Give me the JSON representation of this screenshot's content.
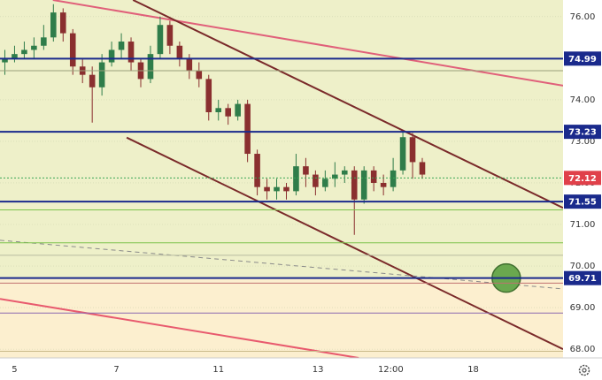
{
  "chart_data": {
    "type": "candlestick",
    "xlim": [
      0,
      116
    ],
    "ylim": [
      67.79,
      76.4
    ],
    "xticks": [
      {
        "value": 3,
        "label": "5"
      },
      {
        "value": 24,
        "label": "7"
      },
      {
        "value": 45,
        "label": "11"
      },
      {
        "value": 65.5,
        "label": "13"
      },
      {
        "value": 80.5,
        "label": "12:00"
      },
      {
        "value": 97.5,
        "label": "18"
      }
    ],
    "yticks": [
      {
        "value": 68,
        "label": "68.00"
      },
      {
        "value": 69,
        "label": "69.00"
      },
      {
        "value": 70,
        "label": "70.00"
      },
      {
        "value": 71,
        "label": "71.00"
      },
      {
        "value": 72,
        "label": "72.00"
      },
      {
        "value": 73,
        "label": "73.00"
      },
      {
        "value": 74,
        "label": "74.00"
      },
      {
        "value": 75,
        "label": "75.00"
      },
      {
        "value": 76,
        "label": "76.00"
      }
    ],
    "grid": true,
    "up_color": "#2f7d4a",
    "down_color": "#8a2f2f",
    "x": [
      1,
      3,
      5,
      7,
      9,
      11,
      13,
      15,
      17,
      19,
      21,
      23,
      25,
      27,
      29,
      31,
      33,
      35,
      37,
      39,
      41,
      43,
      45,
      47,
      49,
      51,
      53,
      55,
      57,
      59,
      61,
      63,
      65,
      67,
      69,
      71,
      73,
      75,
      77,
      79,
      81,
      83,
      85,
      87
    ],
    "open": [
      74.9,
      75.0,
      75.1,
      75.2,
      75.3,
      75.5,
      76.1,
      75.6,
      74.8,
      74.6,
      74.3,
      74.9,
      75.2,
      75.4,
      74.9,
      74.5,
      75.1,
      75.8,
      75.3,
      75.0,
      74.7,
      74.5,
      73.7,
      73.8,
      73.6,
      73.9,
      72.7,
      71.9,
      71.8,
      71.9,
      71.8,
      72.4,
      72.2,
      71.9,
      72.1,
      72.2,
      72.3,
      71.6,
      72.3,
      72.0,
      71.9,
      72.3,
      73.1,
      72.5
    ],
    "high": [
      75.2,
      75.3,
      75.4,
      75.5,
      75.8,
      76.3,
      76.2,
      75.7,
      75.0,
      74.8,
      75.1,
      75.4,
      75.6,
      75.5,
      75.0,
      75.3,
      76.0,
      75.9,
      75.4,
      75.1,
      74.9,
      74.6,
      74.0,
      73.9,
      74.0,
      74.0,
      72.8,
      72.1,
      72.1,
      72.0,
      72.7,
      72.6,
      72.3,
      72.3,
      72.5,
      72.4,
      72.4,
      72.4,
      72.4,
      72.2,
      72.6,
      73.25,
      73.2,
      72.6
    ],
    "low": [
      74.6,
      74.9,
      75.0,
      75.0,
      75.2,
      75.4,
      75.4,
      74.6,
      74.4,
      73.45,
      74.1,
      74.8,
      75.0,
      74.7,
      74.3,
      74.4,
      75.0,
      75.1,
      74.8,
      74.5,
      74.3,
      73.5,
      73.5,
      73.4,
      73.5,
      72.5,
      71.7,
      71.6,
      71.6,
      71.6,
      71.7,
      71.9,
      71.7,
      71.8,
      71.9,
      72.0,
      70.75,
      71.5,
      71.8,
      71.7,
      71.8,
      72.2,
      72.1,
      72.1
    ],
    "close": [
      75.0,
      75.1,
      75.2,
      75.3,
      75.5,
      76.1,
      75.6,
      74.8,
      74.6,
      74.3,
      74.9,
      75.2,
      75.4,
      74.9,
      74.5,
      75.1,
      75.8,
      75.3,
      75.0,
      74.7,
      74.5,
      73.7,
      73.8,
      73.6,
      73.9,
      72.7,
      71.9,
      71.8,
      71.9,
      71.8,
      72.4,
      72.2,
      71.9,
      72.1,
      72.2,
      72.3,
      71.6,
      72.3,
      72.0,
      71.9,
      72.3,
      73.1,
      72.5,
      72.2
    ],
    "levels": [
      {
        "value": 74.99,
        "color": "#1a2a8c",
        "dash": "none"
      },
      {
        "value": 73.23,
        "color": "#1a2a8c",
        "dash": "none"
      },
      {
        "value": 72.12,
        "color": "#3aa655",
        "dash": "2,2",
        "label_color": "#e0404a"
      },
      {
        "value": 71.55,
        "color": "#1a2a8c",
        "dash": "none"
      },
      {
        "value": 69.71,
        "color": "#1a2a8c",
        "dash": "none"
      }
    ],
    "guides": [
      {
        "value": 74.7,
        "color": "#9aa07a"
      },
      {
        "value": 71.35,
        "color": "#7cc24a"
      },
      {
        "value": 70.56,
        "color": "#7cc24a"
      },
      {
        "value": 70.26,
        "color": "#b9bca0"
      },
      {
        "value": 69.59,
        "color": "#c07070"
      },
      {
        "value": 68.87,
        "color": "#8c6ab0"
      },
      {
        "value": 67.95,
        "color": "#c9b98a"
      }
    ],
    "trendlines": [
      {
        "x": [
          10.9,
          116
        ],
        "y": [
          76.4,
          74.34
        ],
        "color": "#e0607a",
        "width": 2,
        "dash": "none"
      },
      {
        "x": [
          27.4,
          116
        ],
        "y": [
          76.4,
          71.4
        ],
        "color": "#7a2a2a",
        "width": 2,
        "dash": "none"
      },
      {
        "x": [
          26.1,
          116
        ],
        "y": [
          73.09,
          68.0
        ],
        "color": "#7a2a2a",
        "width": 2,
        "dash": "none"
      },
      {
        "x": [
          0,
          73.9
        ],
        "y": [
          69.21,
          67.79
        ],
        "color": "#e85a6e",
        "width": 2,
        "dash": "none"
      },
      {
        "x": [
          0,
          116
        ],
        "y": [
          70.62,
          69.45
        ],
        "color": "#8a8a8a",
        "width": 1,
        "dash": "5,4"
      }
    ],
    "marker": {
      "x": 104.3,
      "y": 69.71,
      "color": "#6aa84f"
    }
  }
}
